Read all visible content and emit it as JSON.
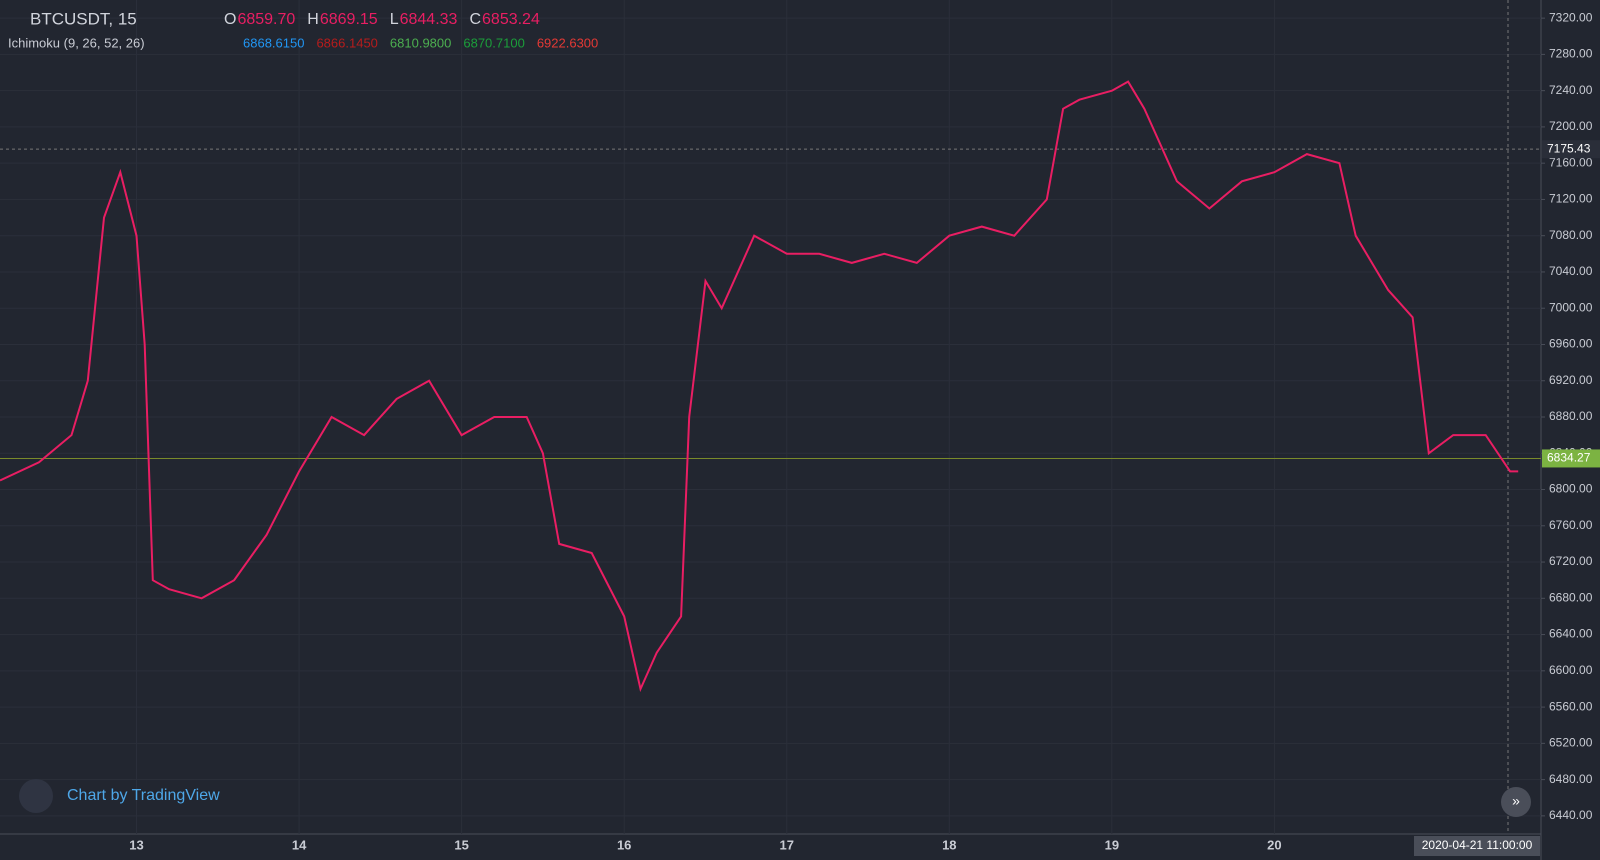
{
  "header": {
    "symbol": "BTCUSDT, 15",
    "ohlc": [
      {
        "key": "O",
        "value": "6859.70"
      },
      {
        "key": "H",
        "value": "6869.15"
      },
      {
        "key": "L",
        "value": "6844.33"
      },
      {
        "key": "C",
        "value": "6853.24"
      }
    ]
  },
  "indicator": {
    "name": "Ichimoku (9, 26, 52, 26)",
    "values": [
      {
        "text": "6868.6150",
        "color": "#2196f3"
      },
      {
        "text": "6866.1450",
        "color": "#b71c1c"
      },
      {
        "text": "6810.9800",
        "color": "#4caf50"
      },
      {
        "text": "6870.7100",
        "color": "#1b9e3a"
      },
      {
        "text": "6922.6300",
        "color": "#e53935"
      }
    ]
  },
  "watermark": "Chart by TradingView",
  "crosshair_time": "2020-04-21 11:00:00",
  "chart_data": {
    "type": "line",
    "color": "#e91e63",
    "x": [
      12.16,
      12.4,
      12.6,
      12.7,
      12.8,
      12.9,
      13.0,
      13.05,
      13.1,
      13.2,
      13.4,
      13.6,
      13.8,
      14.0,
      14.2,
      14.4,
      14.6,
      14.8,
      15.0,
      15.2,
      15.4,
      15.5,
      15.6,
      15.8,
      16.0,
      16.1,
      16.2,
      16.35,
      16.4,
      16.5,
      16.6,
      16.8,
      17.0,
      17.2,
      17.4,
      17.6,
      17.8,
      18.0,
      18.2,
      18.4,
      18.6,
      18.7,
      18.8,
      19.0,
      19.1,
      19.2,
      19.4,
      19.6,
      19.8,
      20.0,
      20.2,
      20.4,
      20.5,
      20.7,
      20.85,
      20.95,
      21.1,
      21.3,
      21.45,
      21.5
    ],
    "values": [
      6810,
      6830,
      6860,
      6920,
      7100,
      7150,
      7080,
      6960,
      6700,
      6690,
      6680,
      6700,
      6750,
      6820,
      6880,
      6860,
      6900,
      6920,
      6860,
      6880,
      6880,
      6840,
      6740,
      6730,
      6660,
      6580,
      6620,
      6660,
      6880,
      7030,
      7000,
      7080,
      7060,
      7060,
      7050,
      7060,
      7050,
      7080,
      7090,
      7080,
      7120,
      7220,
      7230,
      7240,
      7250,
      7220,
      7140,
      7110,
      7140,
      7150,
      7170,
      7160,
      7080,
      7020,
      6990,
      6840,
      6860,
      6860,
      6820,
      6820
    ],
    "xlim": [
      12.16,
      21.64
    ],
    "ylim": [
      6420,
      7340
    ],
    "xticks": [
      13,
      14,
      15,
      16,
      17,
      18,
      19,
      20
    ],
    "yticks": [
      {
        "value": 6440,
        "label": "6440.00"
      },
      {
        "value": 6480,
        "label": "6480.00"
      },
      {
        "value": 6520,
        "label": "6520.00"
      },
      {
        "value": 6560,
        "label": "6560.00"
      },
      {
        "value": 6600,
        "label": "6600.00"
      },
      {
        "value": 6640,
        "label": "6640.00"
      },
      {
        "value": 6680,
        "label": "6680.00"
      },
      {
        "value": 6720,
        "label": "6720.00"
      },
      {
        "value": 6760,
        "label": "6760.00"
      },
      {
        "value": 6800,
        "label": "6800.00"
      },
      {
        "value": 6840,
        "label": "6840.00"
      },
      {
        "value": 6880,
        "label": "6880.00"
      },
      {
        "value": 6920,
        "label": "6920.00"
      },
      {
        "value": 6960,
        "label": "6960.00"
      },
      {
        "value": 7000,
        "label": "7000.00"
      },
      {
        "value": 7040,
        "label": "7040.00"
      },
      {
        "value": 7080,
        "label": "7080.00"
      },
      {
        "value": 7120,
        "label": "7120.00"
      },
      {
        "value": 7160,
        "label": "7160.00"
      },
      {
        "value": 7200,
        "label": "7200.00"
      },
      {
        "value": 7240,
        "label": "7240.00"
      },
      {
        "value": 7280,
        "label": "7280.00"
      },
      {
        "value": 7320,
        "label": "7320.00"
      }
    ],
    "grid": true,
    "last_price": 6834.27,
    "crosshair_price": 7175.43
  }
}
